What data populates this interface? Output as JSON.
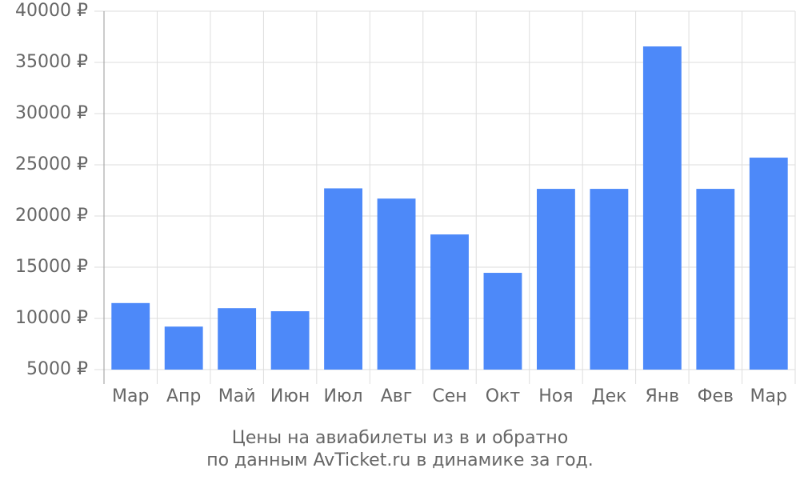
{
  "chart_data": {
    "type": "bar",
    "title": "Цены на авиабилеты из  в  и обратно",
    "subtitle": "по данным AvTicket.ru в динамике за год.",
    "categories": [
      "Мар",
      "Апр",
      "Май",
      "Июн",
      "Июл",
      "Авг",
      "Сен",
      "Окт",
      "Ноя",
      "Дек",
      "Янв",
      "Фев",
      "Мар"
    ],
    "values": [
      11500,
      9200,
      11000,
      10700,
      22700,
      21700,
      18200,
      14450,
      22650,
      22650,
      36560,
      22650,
      25700
    ],
    "color": "#4d89f9",
    "ylim": [
      5000,
      40000
    ],
    "yticks": [
      {
        "value": 5000,
        "label": "5000 ₽"
      },
      {
        "value": 10000,
        "label": "10000 ₽"
      },
      {
        "value": 15000,
        "label": "15000 ₽"
      },
      {
        "value": 20000,
        "label": "20000 ₽"
      },
      {
        "value": 25000,
        "label": "25000 ₽"
      },
      {
        "value": 30000,
        "label": "30000 ₽"
      },
      {
        "value": 35000,
        "label": "35000 ₽"
      },
      {
        "value": 40000,
        "label": "40000 ₽"
      }
    ],
    "grid": true
  }
}
